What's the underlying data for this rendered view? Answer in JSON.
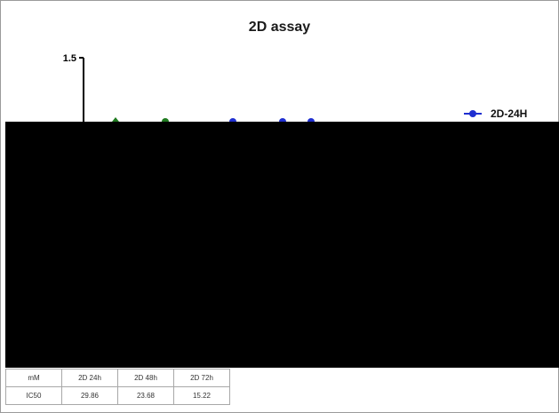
{
  "chart_data": {
    "type": "line",
    "title": "2D assay",
    "xlabel": "",
    "ylabel": "",
    "ytick_visible": "1.5",
    "legend": {
      "placement": "right",
      "entries": [
        "2D-24H"
      ]
    },
    "series": [
      {
        "name": "2D-24H",
        "color": "#1f2fd0"
      },
      {
        "name": "",
        "color": "#1f7a1f"
      }
    ],
    "visible_markers": [
      {
        "series": 1,
        "shape": "triangle",
        "x": 1,
        "y": 1.12
      },
      {
        "series": 1,
        "shape": "circle",
        "x": 2,
        "y": 1.13
      },
      {
        "series": 0,
        "shape": "circle",
        "x": 3,
        "y": 1.1
      },
      {
        "series": 0,
        "shape": "circle",
        "x": 4,
        "y": 1.11
      },
      {
        "series": 0,
        "shape": "circle",
        "x": 5,
        "y": 1.11
      }
    ],
    "occluded": true
  },
  "table": {
    "rows": [
      [
        "mM",
        "2D 24h",
        "2D 48h",
        "2D 72h"
      ],
      [
        "IC50",
        "29.86",
        "23.68",
        "15.22"
      ]
    ]
  }
}
